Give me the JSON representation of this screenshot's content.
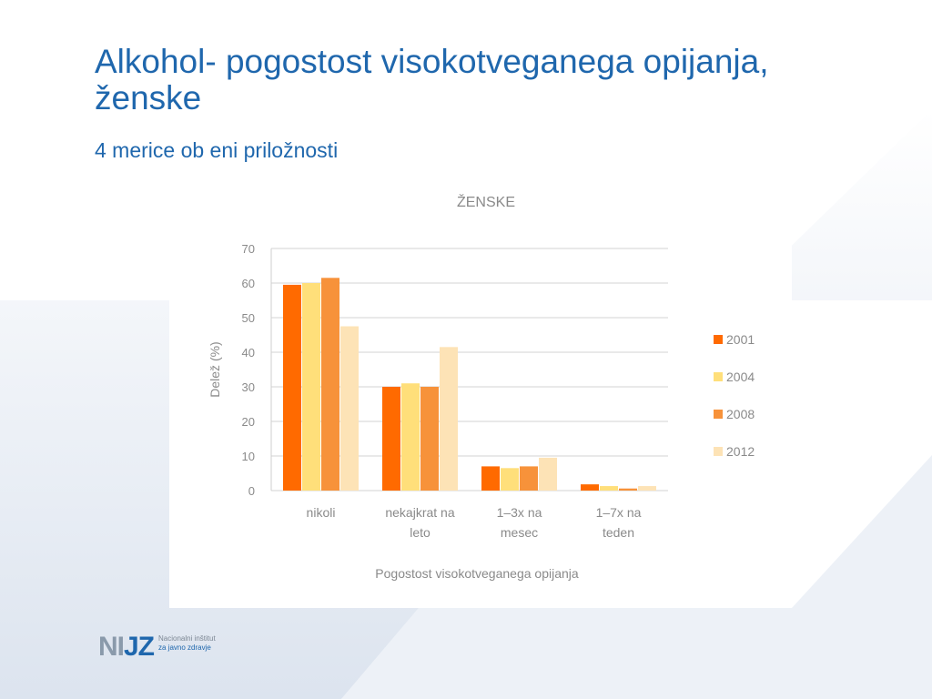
{
  "slide": {
    "title": "Alkohol- pogostost visokotveganega opijanja, ženske",
    "subtitle": "4 merice ob eni priložnosti"
  },
  "logo": {
    "mark_n": "NI",
    "mark_jz": "JZ",
    "line1": "Nacionalni inštitut",
    "line2": "za javno zdravje"
  },
  "colors": {
    "title": "#1f67ad",
    "series": [
      "#ff6a00",
      "#ffdf7a",
      "#f7923a",
      "#fde3b6"
    ]
  },
  "chart_data": {
    "type": "bar",
    "title": "ŽENSKE",
    "xlabel": "Pogostost visokotveganega opijanja",
    "ylabel": "Delež (%)",
    "ylim": [
      0,
      70
    ],
    "yticks": [
      0,
      10,
      20,
      30,
      40,
      50,
      60,
      70
    ],
    "grid": true,
    "legend_position": "right",
    "categories": [
      [
        "nikoli"
      ],
      [
        "nekajkrat na",
        "leto"
      ],
      [
        "1–3x na",
        "mesec"
      ],
      [
        "1–7x na",
        "teden"
      ]
    ],
    "series": [
      {
        "name": "2001",
        "color": "#ff6a00",
        "values": [
          59.5,
          30,
          7,
          1.8
        ]
      },
      {
        "name": "2004",
        "color": "#ffdf7a",
        "values": [
          60,
          31,
          6.5,
          1.3
        ]
      },
      {
        "name": "2008",
        "color": "#f7923a",
        "values": [
          61.5,
          30,
          7,
          0.6
        ]
      },
      {
        "name": "2012",
        "color": "#fde3b6",
        "values": [
          47.5,
          41.5,
          9.5,
          1.3
        ]
      }
    ]
  }
}
